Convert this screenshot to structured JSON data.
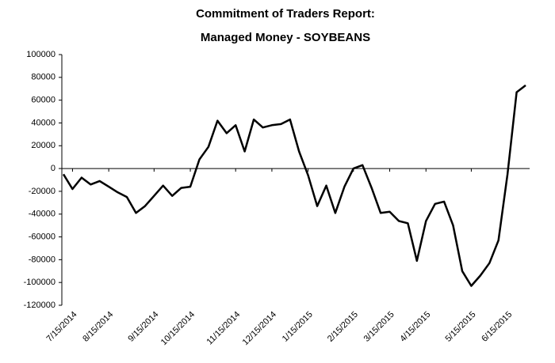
{
  "chart_data": {
    "type": "line",
    "title": [
      "Commitment of Traders Report:",
      "Managed Money - SOYBEANS"
    ],
    "categories": [
      null,
      "7/15/2014",
      null,
      null,
      null,
      "8/15/2014",
      null,
      null,
      null,
      null,
      "9/15/2014",
      null,
      null,
      null,
      "10/15/2014",
      null,
      null,
      null,
      null,
      "11/15/2014",
      null,
      null,
      null,
      "12/15/2014",
      null,
      null,
      null,
      "1/15/2015",
      null,
      null,
      null,
      null,
      "2/15/2015",
      null,
      null,
      null,
      "3/15/2015",
      null,
      null,
      null,
      "4/15/2015",
      null,
      null,
      null,
      null,
      "5/15/2015",
      null,
      null,
      null,
      "6/15/2015",
      null,
      null
    ],
    "series": [
      {
        "name": "Managed Money",
        "color": "#000000",
        "values": [
          -5000,
          -18000,
          -8000,
          -14000,
          -11000,
          -16000,
          -21000,
          -25000,
          -39000,
          -33000,
          -24000,
          -15000,
          -24000,
          -17000,
          -16000,
          8000,
          19000,
          42000,
          31000,
          38000,
          15000,
          43000,
          36000,
          38000,
          39000,
          43000,
          15000,
          -6000,
          -33000,
          -15000,
          -39000,
          -16000,
          0,
          3000,
          -17000,
          -39000,
          -38000,
          -46000,
          -48000,
          -81000,
          -46000,
          -31000,
          -29000,
          -50000,
          -90000,
          -103000,
          -94000,
          -83000,
          -63000,
          -5000,
          67000,
          73000
        ]
      }
    ],
    "ylim": [
      -120000,
      100000
    ],
    "yticks": [
      -120000,
      -100000,
      -80000,
      -60000,
      -40000,
      -20000,
      0,
      20000,
      40000,
      60000,
      80000,
      100000
    ],
    "grid": false
  }
}
